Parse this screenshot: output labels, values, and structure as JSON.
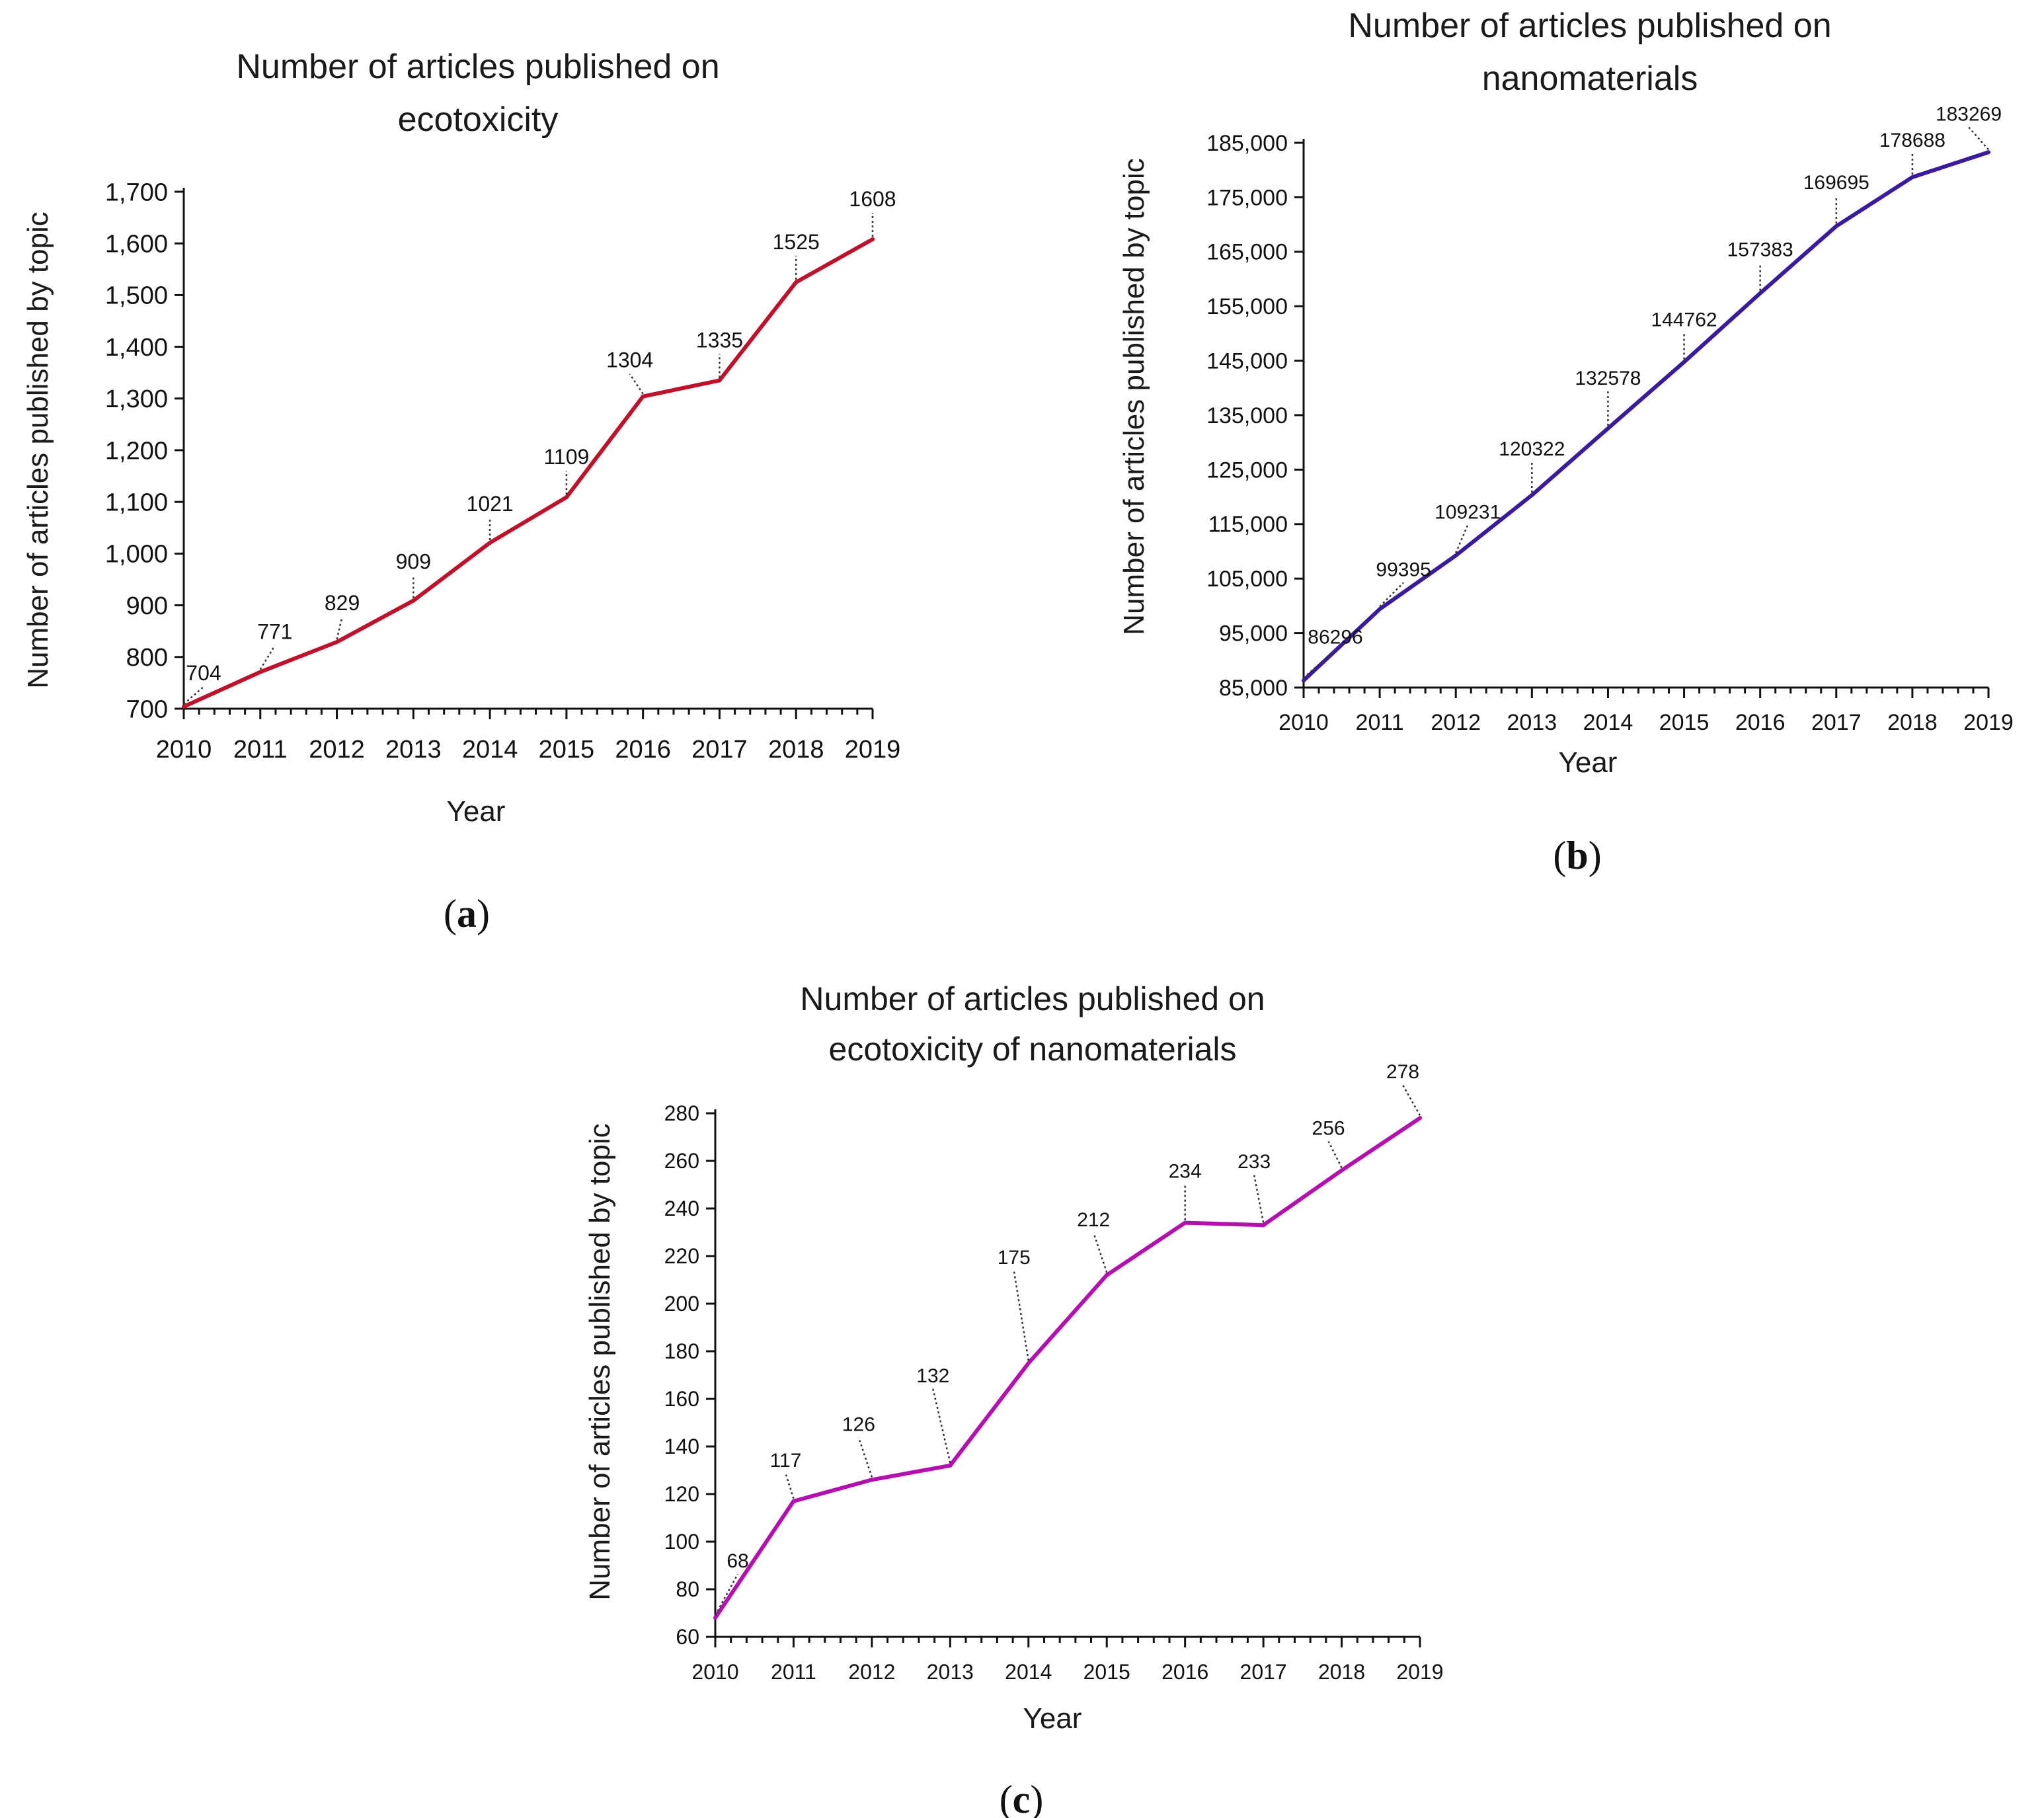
{
  "chart_data": [
    {
      "id": "a",
      "type": "line",
      "panel_label": "(a)",
      "title_lines": [
        "Number of articles published on",
        "ecotoxicity"
      ],
      "xlabel": "Year",
      "ylabel": "Number of articles published by topic",
      "categories": [
        "2010",
        "2011",
        "2012",
        "2013",
        "2014",
        "2015",
        "2016",
        "2017",
        "2018",
        "2019"
      ],
      "values": [
        704,
        771,
        829,
        909,
        1021,
        1109,
        1304,
        1335,
        1525,
        1608
      ],
      "value_labels": [
        "704",
        "771",
        "829",
        "909",
        "1021",
        "1109",
        "1304",
        "1335",
        "1525",
        "1608"
      ],
      "ylim": [
        700,
        1700
      ],
      "yticks": [
        700,
        800,
        900,
        1000,
        1100,
        1200,
        1300,
        1400,
        1500,
        1600,
        1700
      ],
      "ytick_labels": [
        "700",
        "800",
        "900",
        "1,000",
        "1,100",
        "1,200",
        "1,300",
        "1,400",
        "1,500",
        "1,600",
        "1,700"
      ],
      "color": "#c0102a",
      "grid": false,
      "legend": "none"
    },
    {
      "id": "b",
      "type": "line",
      "panel_label": "(b)",
      "title_lines": [
        "Number of articles published on",
        "nanomaterials"
      ],
      "xlabel": "Year",
      "ylabel": "Number of articles published by topic",
      "categories": [
        "2010",
        "2011",
        "2012",
        "2013",
        "2014",
        "2015",
        "2016",
        "2017",
        "2018",
        "2019"
      ],
      "values": [
        86296,
        99395,
        109231,
        120322,
        132578,
        144762,
        157383,
        169695,
        178688,
        183269
      ],
      "value_labels": [
        "86296",
        "99395",
        "109231",
        "120322",
        "132578",
        "144762",
        "157383",
        "169695",
        "178688",
        "183269"
      ],
      "ylim": [
        85000,
        185000
      ],
      "yticks": [
        85000,
        95000,
        105000,
        115000,
        125000,
        135000,
        145000,
        155000,
        165000,
        175000,
        185000
      ],
      "ytick_labels": [
        "85,000",
        "95,000",
        "105,000",
        "115,000",
        "125,000",
        "135,000",
        "145,000",
        "155,000",
        "165,000",
        "175,000",
        "185,000"
      ],
      "color": "#3a1a9e",
      "grid": false,
      "legend": "none"
    },
    {
      "id": "c",
      "type": "line",
      "panel_label": "(c)",
      "title_lines": [
        "Number of articles published on",
        "ecotoxicity of nanomaterials"
      ],
      "xlabel": "Year",
      "ylabel": "Number of articles published by topic",
      "categories": [
        "2010",
        "2011",
        "2012",
        "2013",
        "2014",
        "2015",
        "2016",
        "2017",
        "2018",
        "2019"
      ],
      "values": [
        68,
        117,
        126,
        132,
        175,
        212,
        234,
        233,
        256,
        278
      ],
      "value_labels": [
        "68",
        "117",
        "126",
        "132",
        "175",
        "212",
        "234",
        "233",
        "256",
        "278"
      ],
      "ylim": [
        60,
        280
      ],
      "yticks": [
        60,
        80,
        100,
        120,
        140,
        160,
        180,
        200,
        220,
        240,
        260,
        280
      ],
      "ytick_labels": [
        "60",
        "80",
        "100",
        "120",
        "140",
        "160",
        "180",
        "200",
        "220",
        "240",
        "260",
        "280"
      ],
      "color": "#b60fb0",
      "grid": false,
      "legend": "none"
    }
  ]
}
